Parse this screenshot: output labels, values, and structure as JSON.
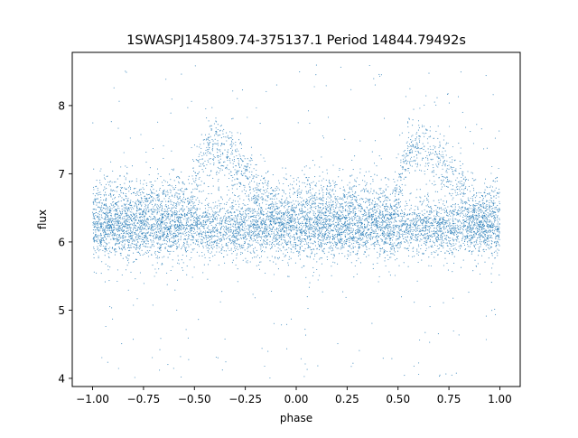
{
  "chart_data": {
    "type": "scatter",
    "title": "1SWASPJ145809.74-375137.1 Period 14844.79492s",
    "xlabel": "phase",
    "ylabel": "flux",
    "xlim": [
      -1.1,
      1.1
    ],
    "ylim": [
      3.88,
      8.78
    ],
    "xticks": [
      -1.0,
      -0.75,
      -0.5,
      -0.25,
      0.0,
      0.25,
      0.5,
      0.75,
      1.0
    ],
    "xtick_labels": [
      "−1.00",
      "−0.75",
      "−0.50",
      "−0.25",
      "0.00",
      "0.25",
      "0.50",
      "0.75",
      "1.00"
    ],
    "yticks": [
      4,
      5,
      6,
      7,
      8
    ],
    "ytick_labels": [
      "4",
      "5",
      "6",
      "7",
      "8"
    ],
    "x_range": [
      -1.0,
      1.0
    ],
    "baseline_flux": 6.2,
    "peak_phases": [
      -0.42,
      0.58
    ],
    "peak_flux": 7.35,
    "secondary_peak_flux": 6.95,
    "grid": false,
    "marker_color": "#1f77b4",
    "series": [
      {
        "name": "",
        "summary": "dense phase-folded light curve; core band flux 5.7 to 6.9 across all phases, bump to about 7.3 to 7.6 near phase -0.42 and 0.58, sparse outliers between 4.0 and 8.6",
        "sample_points": [
          [
            -1.0,
            6.2
          ],
          [
            -0.9,
            6.3
          ],
          [
            -0.8,
            6.1
          ],
          [
            -0.7,
            6.3
          ],
          [
            -0.6,
            6.4
          ],
          [
            -0.5,
            6.9
          ],
          [
            -0.42,
            7.35
          ],
          [
            -0.35,
            7.1
          ],
          [
            -0.25,
            6.8
          ],
          [
            -0.15,
            6.5
          ],
          [
            0.0,
            6.2
          ],
          [
            0.1,
            6.3
          ],
          [
            0.2,
            6.1
          ],
          [
            0.3,
            6.3
          ],
          [
            0.4,
            6.4
          ],
          [
            0.5,
            6.9
          ],
          [
            0.58,
            7.35
          ],
          [
            0.65,
            7.1
          ],
          [
            0.75,
            6.8
          ],
          [
            0.85,
            6.5
          ],
          [
            1.0,
            6.2
          ]
        ]
      }
    ]
  }
}
